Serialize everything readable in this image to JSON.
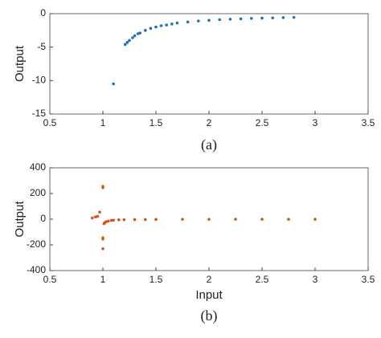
{
  "chart_data": [
    {
      "type": "scatter",
      "caption": "(a)",
      "ylabel": "Output",
      "color": "#1f6fb4",
      "x": [
        1.1,
        1.21,
        1.23,
        1.25,
        1.28,
        1.3,
        1.33,
        1.35,
        1.4,
        1.45,
        1.5,
        1.55,
        1.6,
        1.65,
        1.7,
        1.8,
        1.9,
        2.0,
        2.1,
        2.2,
        2.3,
        2.4,
        2.5,
        2.6,
        2.7,
        2.8
      ],
      "values": [
        -10.5,
        -4.6,
        -4.3,
        -4,
        -3.6,
        -3.3,
        -3,
        -2.9,
        -2.5,
        -2.2,
        -2,
        -1.8,
        -1.7,
        -1.55,
        -1.4,
        -1.25,
        -1.1,
        -1,
        -0.9,
        -0.83,
        -0.77,
        -0.71,
        -0.67,
        -0.63,
        -0.59,
        -0.56
      ],
      "xlim": [
        0.5,
        3.5
      ],
      "ylim": [
        -15,
        0
      ],
      "xticks": [
        0.5,
        1,
        1.5,
        2,
        2.5,
        3,
        3.5
      ],
      "yticks": [
        0,
        -5,
        -10,
        -15
      ],
      "grid": false
    },
    {
      "type": "scatter",
      "caption": "(b)",
      "xlabel": "Input",
      "ylabel": "Output",
      "color": "#d95319",
      "x": [
        0.9,
        0.93,
        0.95,
        0.97,
        1.0,
        1.0,
        1.0,
        1.0,
        1.0,
        1.01,
        1.02,
        1.03,
        1.05,
        1.08,
        1.1,
        1.15,
        1.2,
        1.3,
        1.4,
        1.5,
        1.75,
        2.0,
        2.25,
        2.5,
        2.75,
        3.0
      ],
      "values": [
        10,
        18,
        22,
        55,
        255,
        245,
        -145,
        -155,
        -230,
        -35,
        -25,
        -20,
        -15,
        -10,
        -8,
        -5,
        -4,
        -3,
        -2.5,
        -2,
        -1,
        -1,
        -0.7,
        -0.6,
        -0.5,
        -0.5
      ],
      "xlim": [
        0.5,
        3.5
      ],
      "ylim": [
        -400,
        400
      ],
      "xticks": [
        0.5,
        1,
        1.5,
        2,
        2.5,
        3,
        3.5
      ],
      "yticks": [
        400,
        200,
        0,
        -200,
        -400
      ],
      "grid": false
    }
  ]
}
